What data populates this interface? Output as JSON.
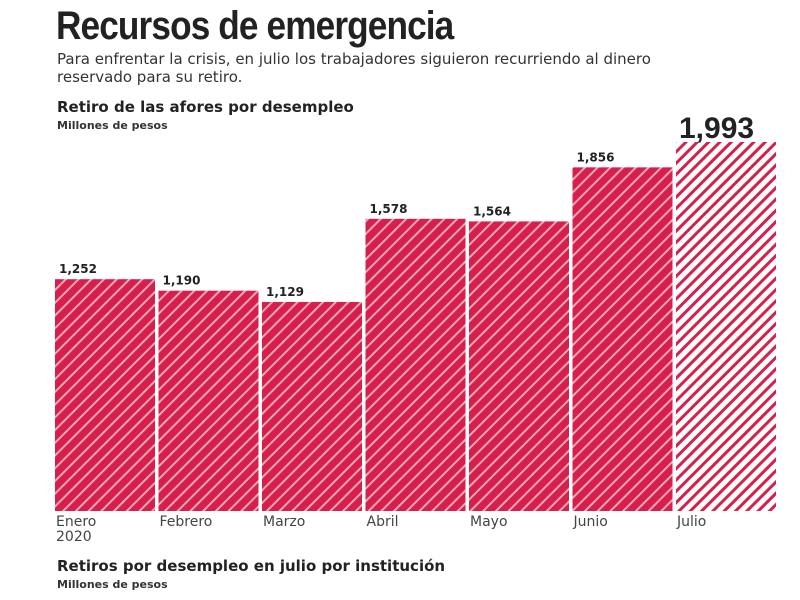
{
  "header": {
    "title": "Recursos de emergencia",
    "subtitle": "Para enfrentar la crisis, en julio los trabajadores siguieron recurriendo al dinero reservado para su retiro."
  },
  "chart_data": {
    "type": "bar",
    "title": "Retiro de las afores por desempleo",
    "ylabel": "Millones de pesos",
    "categories": [
      "Enero",
      "Febrero",
      "Marzo",
      "Abril",
      "Mayo",
      "Junio",
      "Julio"
    ],
    "category_sublabels": [
      "2020",
      "",
      "",
      "",
      "",
      "",
      ""
    ],
    "values": [
      1252,
      1190,
      1129,
      1578,
      1564,
      1856,
      1993
    ],
    "data_labels": [
      "1,252",
      "1,190",
      "1,129",
      "1,578",
      "1,564",
      "1,856",
      "1,993"
    ],
    "ylim": [
      0,
      1993
    ],
    "grid": false,
    "colors": {
      "bar": "#d61f4a",
      "highlight_bar": "#d61f4a",
      "stripe": "#ffffff"
    },
    "highlight": "Julio"
  },
  "section2": {
    "title": "Retiros por desempleo en julio por institución",
    "unit": "Millones de pesos"
  }
}
